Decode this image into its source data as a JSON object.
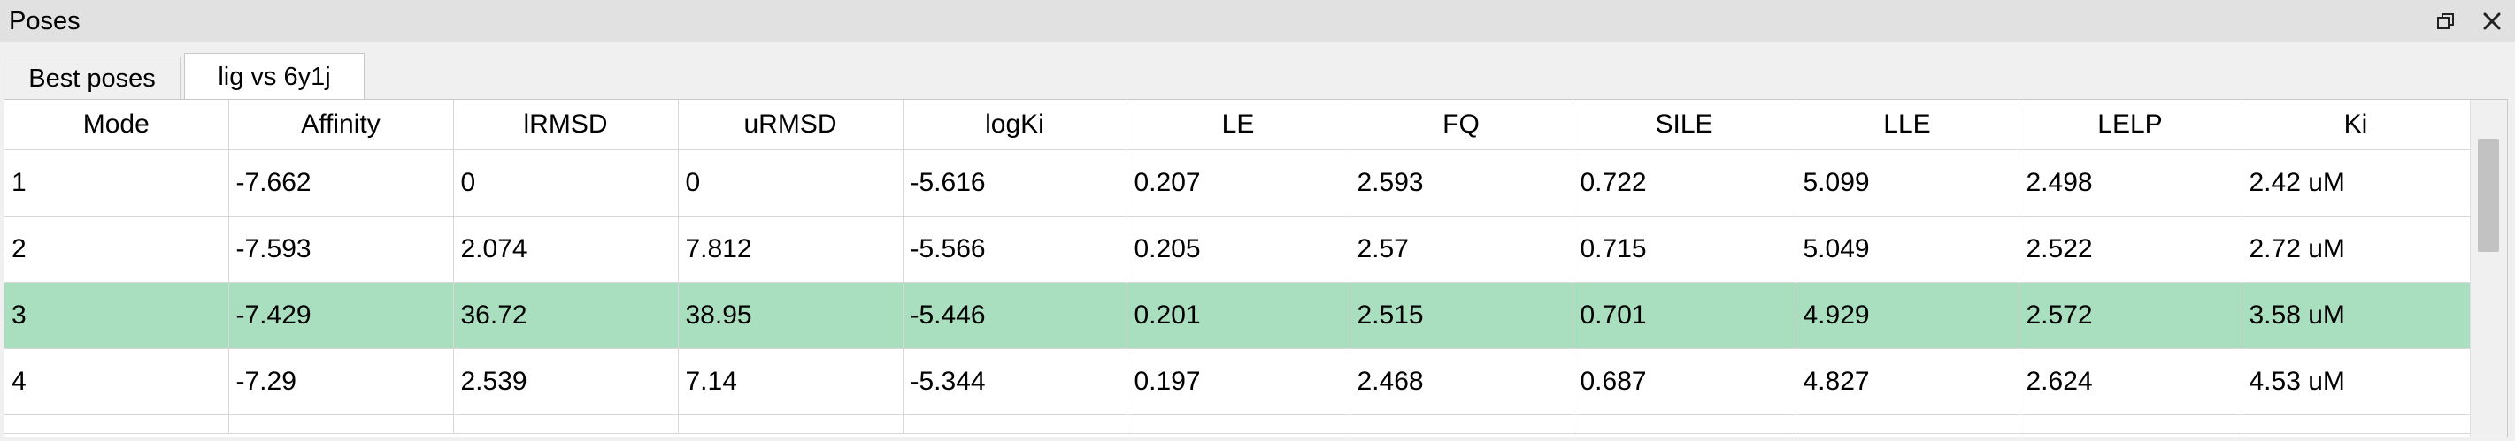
{
  "window": {
    "title": "Poses",
    "float_icon": "restore-window-icon",
    "close_icon": "close-icon"
  },
  "tabs": [
    {
      "label": "Best poses",
      "active": false
    },
    {
      "label": "lig vs 6y1j",
      "active": true
    }
  ],
  "table": {
    "columns": [
      "Mode",
      "Affinity",
      "lRMSD",
      "uRMSD",
      "logKi",
      "LE",
      "FQ",
      "SILE",
      "LLE",
      "LELP",
      "Ki"
    ],
    "rows": [
      [
        "1",
        "-7.662",
        "0",
        "0",
        "-5.616",
        "0.207",
        "2.593",
        "0.722",
        "5.099",
        "2.498",
        "2.42 uM"
      ],
      [
        "2",
        "-7.593",
        "2.074",
        "7.812",
        "-5.566",
        "0.205",
        "2.57",
        "0.715",
        "5.049",
        "2.522",
        "2.72 uM"
      ],
      [
        "3",
        "-7.429",
        "36.72",
        "38.95",
        "-5.446",
        "0.201",
        "2.515",
        "0.701",
        "4.929",
        "2.572",
        "3.58 uM"
      ],
      [
        "4",
        "-7.29",
        "2.539",
        "7.14",
        "-5.344",
        "0.197",
        "2.468",
        "0.687",
        "4.827",
        "2.624",
        "4.53 uM"
      ]
    ],
    "selected_row_index": 2,
    "selected_color": "#a9dfbf"
  }
}
